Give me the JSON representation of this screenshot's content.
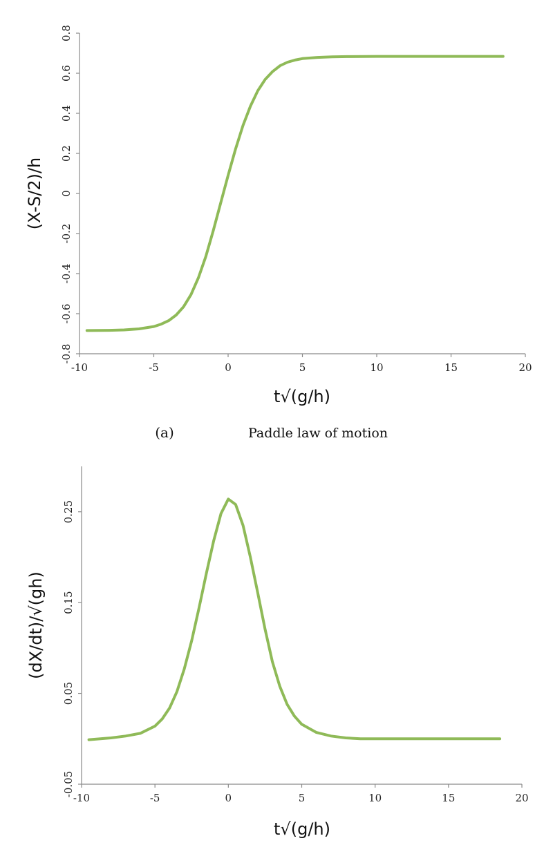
{
  "colors": {
    "curve": "#8fba58",
    "axis": "#8a8a8a"
  },
  "caption": {
    "tag": "(a)",
    "text": "Paddle law of motion"
  },
  "chart_data": [
    {
      "type": "line",
      "title": "",
      "xlabel": "t√(g/h)",
      "ylabel": "(X-S/2)/h",
      "xlim": [
        -10,
        20
      ],
      "ylim": [
        -0.8,
        0.8
      ],
      "x_ticks": [
        "-10",
        "-5",
        "0",
        "5",
        "10",
        "15",
        "20"
      ],
      "y_ticks": [
        "-0.8",
        "-0.6",
        "-0.4",
        "-0.2",
        "0",
        "0.2",
        "0.4",
        "0.6",
        "0.8"
      ],
      "grid": false,
      "series": [
        {
          "x": [
            -9.5,
            -8,
            -7,
            -6,
            -5,
            -4.5,
            -4,
            -3.5,
            -3,
            -2.5,
            -2,
            -1.5,
            -1,
            -0.5,
            0,
            0.5,
            1,
            1.5,
            2,
            2.5,
            3,
            3.5,
            4,
            4.5,
            5,
            6,
            7,
            8,
            10,
            12,
            15,
            18.5
          ],
          "y": [
            -0.684,
            -0.683,
            -0.681,
            -0.676,
            -0.664,
            -0.652,
            -0.635,
            -0.607,
            -0.566,
            -0.505,
            -0.421,
            -0.314,
            -0.186,
            -0.047,
            0.09,
            0.222,
            0.339,
            0.436,
            0.513,
            0.57,
            0.609,
            0.638,
            0.655,
            0.666,
            0.673,
            0.679,
            0.682,
            0.683,
            0.684,
            0.684,
            0.684,
            0.684
          ]
        }
      ]
    },
    {
      "type": "line",
      "title": "",
      "xlabel": "t√(g/h)",
      "ylabel": "(dX/dt)/√(gh)",
      "xlim": [
        -10,
        20
      ],
      "ylim": [
        -0.05,
        0.3
      ],
      "x_ticks": [
        "-10",
        "-5",
        "0",
        "5",
        "10",
        "15",
        "20"
      ],
      "y_ticks": [
        "-0.05",
        "0.05",
        "0.15",
        "0.25"
      ],
      "grid": false,
      "series": [
        {
          "x": [
            -9.5,
            -8,
            -7,
            -6,
            -5,
            -4.5,
            -4,
            -3.5,
            -3,
            -2.5,
            -2,
            -1.5,
            -1,
            -0.5,
            0,
            0.5,
            1,
            1.5,
            2,
            2.5,
            3,
            3.5,
            4,
            4.5,
            5,
            6,
            7,
            8,
            9,
            12,
            15,
            18.5
          ],
          "y": [
            -0.001,
            0.001,
            0.003,
            0.006,
            0.014,
            0.022,
            0.034,
            0.052,
            0.077,
            0.108,
            0.144,
            0.182,
            0.218,
            0.248,
            0.264,
            0.258,
            0.235,
            0.2,
            0.161,
            0.121,
            0.085,
            0.058,
            0.038,
            0.025,
            0.016,
            0.007,
            0.003,
            0.001,
            0.0,
            0.0,
            0.0,
            0.0
          ]
        }
      ]
    }
  ]
}
